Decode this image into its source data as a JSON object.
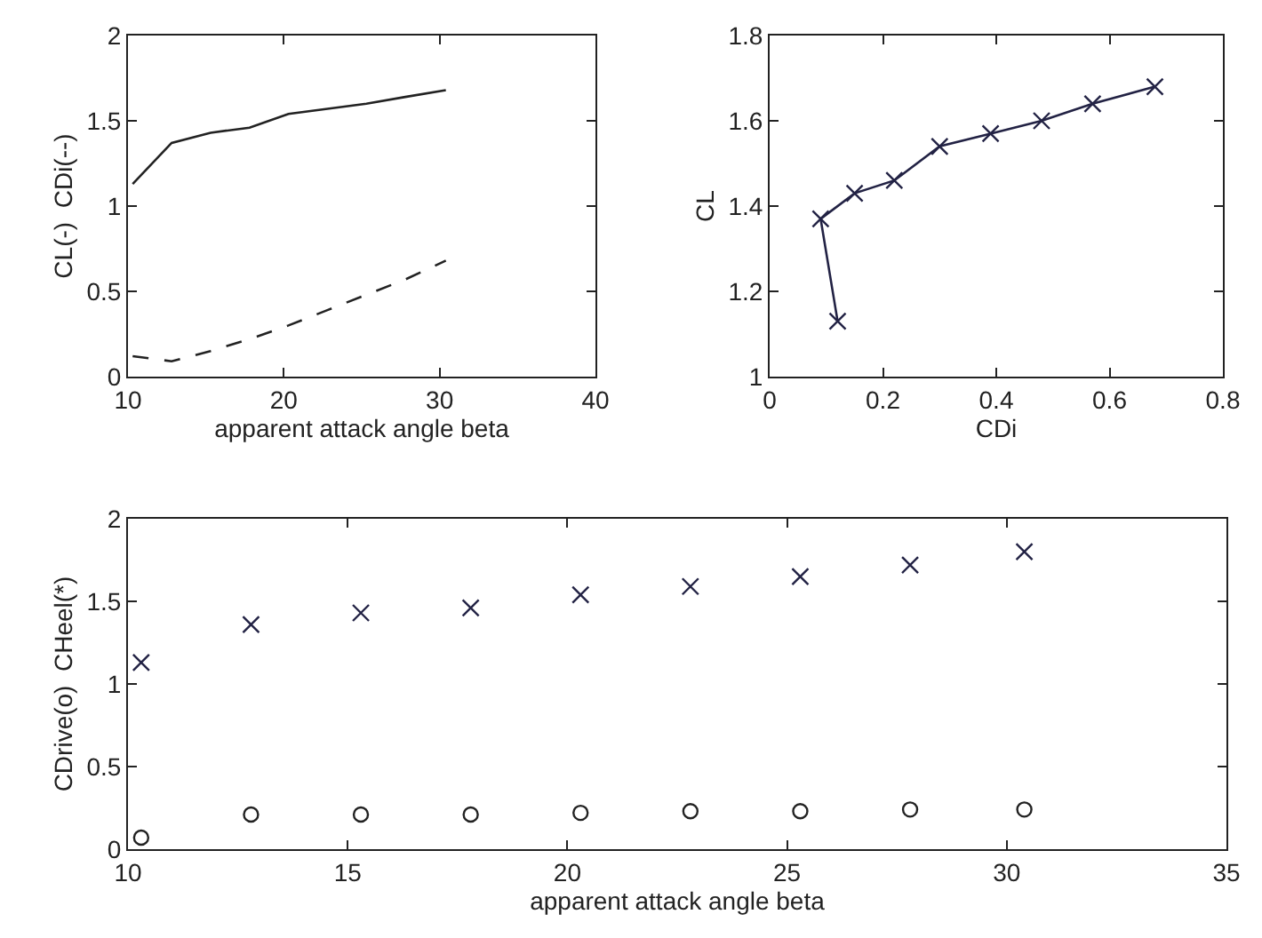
{
  "chart_data": [
    {
      "type": "line",
      "xlabel": "apparent attack angle beta",
      "ylabel": "CL(-)  CDi(--)",
      "x": [
        10.3,
        12.8,
        15.3,
        17.8,
        20.3,
        22.8,
        25.3,
        27.8,
        30.4
      ],
      "xlim": [
        10,
        40
      ],
      "xticks": [
        10,
        20,
        30,
        40
      ],
      "ylim": [
        0,
        2
      ],
      "yticks": [
        0,
        0.5,
        1,
        1.5,
        2
      ],
      "grid": false,
      "series": [
        {
          "color": "#222222",
          "line_style": "solid",
          "values": [
            1.13,
            1.37,
            1.43,
            1.46,
            1.54,
            1.57,
            1.6,
            1.64,
            1.68
          ]
        },
        {
          "color": "#222222",
          "line_style": "dashed",
          "values": [
            0.12,
            0.09,
            0.15,
            0.22,
            0.3,
            0.39,
            0.48,
            0.57,
            0.68
          ]
        }
      ]
    },
    {
      "type": "line",
      "xlabel": "CDi",
      "ylabel": "CL",
      "x": [
        0.12,
        0.09,
        0.15,
        0.22,
        0.3,
        0.39,
        0.48,
        0.57,
        0.68
      ],
      "xlim": [
        0,
        0.8
      ],
      "xticks": [
        0,
        0.2,
        0.4,
        0.6,
        0.8
      ],
      "ylim": [
        1,
        1.8
      ],
      "yticks": [
        1,
        1.2,
        1.4,
        1.6,
        1.8
      ],
      "grid": false,
      "marker": "cross",
      "series": [
        {
          "color": "#222244",
          "values": [
            1.13,
            1.37,
            1.43,
            1.46,
            1.54,
            1.57,
            1.6,
            1.64,
            1.68
          ]
        }
      ]
    },
    {
      "type": "scatter",
      "xlabel": "apparent attack angle beta",
      "ylabel": "CDrive(o)  CHeel(*)",
      "x": [
        10.3,
        12.8,
        15.3,
        17.8,
        20.3,
        22.8,
        25.3,
        27.8,
        30.4
      ],
      "xlim": [
        10,
        35
      ],
      "xticks": [
        10,
        15,
        20,
        25,
        30,
        35
      ],
      "ylim": [
        0,
        2
      ],
      "yticks": [
        0,
        0.5,
        1,
        1.5,
        2
      ],
      "grid": false,
      "series": [
        {
          "color": "#222244",
          "marker": "cross",
          "values": [
            1.13,
            1.36,
            1.43,
            1.46,
            1.54,
            1.59,
            1.65,
            1.72,
            1.8
          ]
        },
        {
          "color": "#222222",
          "marker": "circle",
          "values": [
            0.07,
            0.21,
            0.21,
            0.21,
            0.22,
            0.23,
            0.23,
            0.24,
            0.24
          ]
        }
      ]
    }
  ]
}
